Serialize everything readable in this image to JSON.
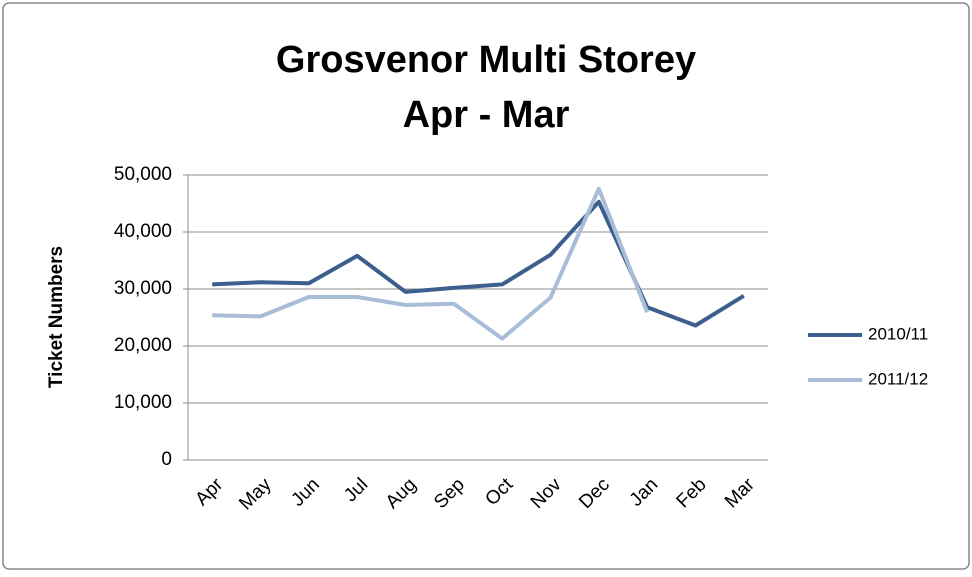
{
  "chart_data": {
    "type": "line",
    "title": [
      "Grosvenor Multi Storey",
      "Apr - Mar"
    ],
    "y_label": "Ticket Numbers",
    "categories": [
      "Apr",
      "May",
      "Jun",
      "Jul",
      "Aug",
      "Sep",
      "Oct",
      "Nov",
      "Dec",
      "Jan",
      "Feb",
      "Mar"
    ],
    "series": [
      {
        "name": "2010/11",
        "color": "#3c5f8e",
        "values": [
          30800,
          31200,
          31000,
          35800,
          29500,
          30200,
          30800,
          36000,
          45300,
          26800,
          23600,
          28800
        ]
      },
      {
        "name": "2011/12",
        "color": "#a9bcd8",
        "values": [
          25400,
          25200,
          28600,
          28600,
          27200,
          27400,
          21300,
          28500,
          47600,
          25900,
          null,
          null
        ]
      }
    ],
    "ylim": [
      0,
      50000
    ],
    "yticks": [
      0,
      {
        "value": 10000,
        "label": "10,000"
      },
      {
        "value": 20000,
        "label": "20,000"
      },
      {
        "value": 30000,
        "label": "30,000"
      },
      {
        "value": 40000,
        "label": "40,000"
      },
      {
        "value": 50000,
        "label": "50,000"
      }
    ],
    "grid": true,
    "legend": "right"
  }
}
